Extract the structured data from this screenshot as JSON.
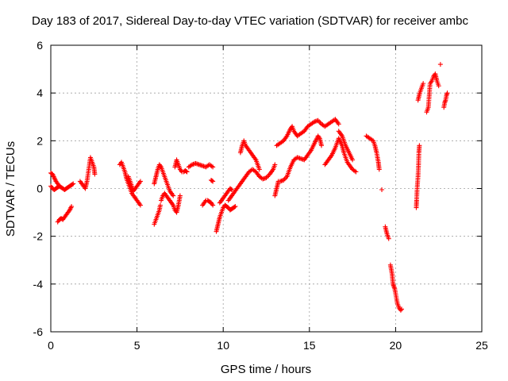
{
  "chart_data": {
    "type": "scatter",
    "title": "Day 183 of 2017, Sidereal Day-to-day VTEC variation (SDTVAR) for receiver ambc",
    "xlabel": "GPS time / hours",
    "ylabel": "SDTVAR / TECUs",
    "xlim": [
      0,
      25
    ],
    "ylim": [
      -6,
      6
    ],
    "x_ticks": [
      0,
      5,
      10,
      15,
      20,
      25
    ],
    "y_ticks": [
      -6,
      -4,
      -2,
      0,
      2,
      4,
      6
    ],
    "x_tick_labels": [
      "0",
      "5",
      "10",
      "15",
      "20",
      "25"
    ],
    "y_tick_labels": [
      "-6",
      "-4",
      "-2",
      "0",
      "2",
      "4",
      "6"
    ],
    "grid": true,
    "marker": "+",
    "marker_color": "#ff0000",
    "series": [
      {
        "name": "SDTVAR",
        "segments": [
          [
            [
              0.0,
              0.65
            ],
            [
              0.1,
              0.6
            ],
            [
              0.2,
              0.45
            ],
            [
              0.3,
              0.3
            ],
            [
              0.4,
              0.2
            ],
            [
              0.5,
              0.1
            ],
            [
              0.6,
              0.05
            ],
            [
              0.7,
              0.0
            ],
            [
              0.8,
              -0.05
            ],
            [
              0.9,
              0.0
            ],
            [
              1.0,
              0.05
            ],
            [
              1.1,
              0.1
            ],
            [
              1.2,
              0.15
            ],
            [
              1.3,
              0.2
            ]
          ],
          [
            [
              0.0,
              0.1
            ],
            [
              0.1,
              0.0
            ],
            [
              0.2,
              -0.05
            ],
            [
              0.3,
              0.0
            ],
            [
              0.4,
              0.05
            ],
            [
              0.5,
              0.1
            ]
          ],
          [
            [
              0.4,
              -1.4
            ],
            [
              0.5,
              -1.3
            ],
            [
              0.6,
              -1.25
            ],
            [
              0.7,
              -1.3
            ],
            [
              0.8,
              -1.2
            ],
            [
              0.9,
              -1.1
            ],
            [
              1.0,
              -1.0
            ],
            [
              1.1,
              -0.9
            ],
            [
              1.2,
              -0.75
            ]
          ],
          [
            [
              1.7,
              0.3
            ],
            [
              1.8,
              0.2
            ],
            [
              1.9,
              0.1
            ],
            [
              2.0,
              0.0
            ],
            [
              2.1,
              0.3
            ],
            [
              2.2,
              0.8
            ],
            [
              2.3,
              1.3
            ],
            [
              2.4,
              1.1
            ],
            [
              2.5,
              0.9
            ],
            [
              2.55,
              0.6
            ]
          ],
          [
            [
              4.0,
              1.0
            ],
            [
              4.1,
              1.1
            ],
            [
              4.2,
              0.9
            ],
            [
              4.3,
              0.7
            ],
            [
              4.4,
              0.4
            ],
            [
              4.5,
              0.2
            ],
            [
              4.6,
              0.0
            ],
            [
              4.7,
              -0.2
            ],
            [
              4.8,
              -0.3
            ],
            [
              4.9,
              -0.4
            ],
            [
              5.0,
              -0.5
            ],
            [
              5.1,
              -0.6
            ],
            [
              5.2,
              -0.7
            ]
          ],
          [
            [
              4.5,
              0.5
            ],
            [
              4.6,
              0.3
            ],
            [
              4.7,
              0.1
            ],
            [
              4.8,
              -0.1
            ],
            [
              4.9,
              0.0
            ],
            [
              5.0,
              0.1
            ],
            [
              5.1,
              0.2
            ],
            [
              5.2,
              0.3
            ]
          ],
          [
            [
              6.0,
              -1.5
            ],
            [
              6.1,
              -1.3
            ],
            [
              6.2,
              -1.1
            ],
            [
              6.3,
              -0.9
            ],
            [
              6.35,
              -0.7
            ]
          ],
          [
            [
              6.0,
              0.2
            ],
            [
              6.1,
              0.5
            ],
            [
              6.2,
              0.8
            ],
            [
              6.3,
              1.0
            ],
            [
              6.4,
              0.9
            ],
            [
              6.5,
              0.7
            ],
            [
              6.6,
              0.5
            ],
            [
              6.7,
              0.3
            ],
            [
              6.8,
              0.1
            ],
            [
              6.9,
              -0.1
            ],
            [
              7.0,
              -0.2
            ],
            [
              7.1,
              -0.3
            ]
          ],
          [
            [
              6.4,
              -0.5
            ],
            [
              6.5,
              -0.3
            ],
            [
              6.6,
              -0.2
            ],
            [
              6.7,
              -0.3
            ],
            [
              6.8,
              -0.4
            ],
            [
              6.9,
              -0.5
            ],
            [
              7.0,
              -0.6
            ],
            [
              7.1,
              -0.7
            ],
            [
              7.2,
              -0.9
            ],
            [
              7.3,
              -1.0
            ],
            [
              7.4,
              -0.7
            ],
            [
              7.5,
              -0.3
            ]
          ],
          [
            [
              7.2,
              0.9
            ],
            [
              7.3,
              1.2
            ],
            [
              7.4,
              1.0
            ],
            [
              7.5,
              0.8
            ],
            [
              7.6,
              0.7
            ],
            [
              7.7,
              0.7
            ],
            [
              7.8,
              0.75
            ],
            [
              7.9,
              0.7
            ]
          ],
          [
            [
              8.0,
              0.9
            ],
            [
              8.2,
              1.0
            ],
            [
              8.4,
              1.05
            ],
            [
              8.6,
              1.0
            ],
            [
              8.8,
              0.95
            ],
            [
              9.0,
              0.9
            ],
            [
              9.2,
              1.0
            ],
            [
              9.4,
              0.9
            ]
          ],
          [
            [
              8.8,
              -0.7
            ],
            [
              8.9,
              -0.6
            ],
            [
              9.0,
              -0.5
            ],
            [
              9.1,
              -0.5
            ],
            [
              9.2,
              -0.55
            ],
            [
              9.3,
              -0.6
            ],
            [
              9.4,
              -0.7
            ]
          ],
          [
            [
              9.3,
              0.35
            ],
            [
              9.4,
              0.3
            ]
          ],
          [
            [
              9.6,
              -1.8
            ],
            [
              9.7,
              -1.5
            ],
            [
              9.8,
              -1.2
            ],
            [
              9.9,
              -1.0
            ],
            [
              10.0,
              -0.8
            ],
            [
              10.1,
              -0.7
            ],
            [
              10.2,
              -0.75
            ],
            [
              10.3,
              -0.8
            ],
            [
              10.4,
              -0.9
            ],
            [
              10.5,
              -0.85
            ],
            [
              10.6,
              -0.8
            ],
            [
              10.7,
              -0.75
            ]
          ],
          [
            [
              9.8,
              -0.6
            ],
            [
              9.9,
              -0.5
            ],
            [
              10.0,
              -0.4
            ],
            [
              10.1,
              -0.3
            ],
            [
              10.2,
              -0.2
            ],
            [
              10.3,
              -0.1
            ],
            [
              10.4,
              0.0
            ],
            [
              10.5,
              -0.05
            ]
          ],
          [
            [
              10.3,
              -0.5
            ],
            [
              10.5,
              -0.3
            ],
            [
              10.7,
              -0.1
            ],
            [
              10.9,
              0.1
            ],
            [
              11.1,
              0.3
            ],
            [
              11.3,
              0.5
            ],
            [
              11.5,
              0.7
            ],
            [
              11.7,
              0.8
            ],
            [
              11.9,
              0.7
            ],
            [
              12.1,
              0.5
            ],
            [
              12.3,
              0.4
            ],
            [
              12.5,
              0.45
            ],
            [
              12.7,
              0.6
            ],
            [
              12.9,
              0.8
            ],
            [
              13.0,
              1.0
            ]
          ],
          [
            [
              11.0,
              1.5
            ],
            [
              11.1,
              1.8
            ],
            [
              11.2,
              2.0
            ],
            [
              11.3,
              1.8
            ],
            [
              11.5,
              1.6
            ],
            [
              11.7,
              1.4
            ],
            [
              11.9,
              1.2
            ],
            [
              12.0,
              1.0
            ],
            [
              12.1,
              0.8
            ]
          ],
          [
            [
              13.0,
              -0.3
            ],
            [
              13.1,
              0.0
            ],
            [
              13.2,
              0.3
            ],
            [
              13.3,
              0.3
            ],
            [
              13.5,
              0.35
            ],
            [
              13.7,
              0.5
            ],
            [
              13.9,
              0.9
            ],
            [
              14.1,
              1.2
            ],
            [
              14.3,
              1.3
            ],
            [
              14.5,
              1.25
            ],
            [
              14.7,
              1.2
            ],
            [
              14.9,
              1.4
            ],
            [
              15.1,
              1.6
            ],
            [
              15.3,
              1.9
            ],
            [
              15.5,
              2.2
            ],
            [
              15.6,
              2.1
            ],
            [
              15.7,
              1.8
            ]
          ],
          [
            [
              13.1,
              1.8
            ],
            [
              13.3,
              1.9
            ],
            [
              13.5,
              2.0
            ],
            [
              13.7,
              2.2
            ],
            [
              13.9,
              2.5
            ],
            [
              14.0,
              2.6
            ],
            [
              14.1,
              2.4
            ],
            [
              14.3,
              2.2
            ],
            [
              14.5,
              2.3
            ],
            [
              14.7,
              2.4
            ],
            [
              14.9,
              2.6
            ],
            [
              15.1,
              2.7
            ],
            [
              15.3,
              2.8
            ],
            [
              15.5,
              2.85
            ],
            [
              15.7,
              2.7
            ],
            [
              15.9,
              2.6
            ],
            [
              16.1,
              2.7
            ],
            [
              16.3,
              2.8
            ],
            [
              16.5,
              2.9
            ],
            [
              16.7,
              2.7
            ]
          ],
          [
            [
              15.9,
              1.0
            ],
            [
              16.1,
              1.2
            ],
            [
              16.3,
              1.4
            ],
            [
              16.5,
              1.7
            ],
            [
              16.7,
              2.1
            ],
            [
              16.9,
              1.8
            ],
            [
              17.0,
              1.5
            ],
            [
              17.1,
              1.3
            ],
            [
              17.2,
              1.1
            ],
            [
              17.3,
              1.0
            ],
            [
              17.5,
              0.8
            ],
            [
              17.7,
              0.7
            ]
          ],
          [
            [
              16.7,
              2.4
            ],
            [
              16.9,
              2.2
            ],
            [
              17.1,
              1.8
            ],
            [
              17.3,
              1.5
            ],
            [
              17.5,
              1.2
            ]
          ],
          [
            [
              18.3,
              2.2
            ],
            [
              18.5,
              2.1
            ],
            [
              18.7,
              2.0
            ],
            [
              18.8,
              1.8
            ],
            [
              18.9,
              1.5
            ],
            [
              19.0,
              1.1
            ],
            [
              19.05,
              0.8
            ]
          ],
          [
            [
              19.2,
              -0.05
            ]
          ],
          [
            [
              19.4,
              -1.6
            ],
            [
              19.5,
              -1.9
            ],
            [
              19.6,
              -2.1
            ]
          ],
          [
            [
              19.7,
              -3.2
            ],
            [
              19.8,
              -3.6
            ],
            [
              19.85,
              -4.0
            ],
            [
              19.9,
              -4.1
            ],
            [
              19.95,
              -4.2
            ],
            [
              20.0,
              -4.4
            ],
            [
              20.1,
              -4.8
            ],
            [
              20.2,
              -5.0
            ],
            [
              20.3,
              -5.1
            ],
            [
              20.35,
              -5.05
            ]
          ],
          [
            [
              21.2,
              -0.8
            ],
            [
              21.22,
              -0.5
            ],
            [
              21.25,
              0.0
            ],
            [
              21.3,
              0.5
            ],
            [
              21.33,
              1.0
            ],
            [
              21.35,
              1.5
            ],
            [
              21.38,
              1.8
            ]
          ],
          [
            [
              21.3,
              3.7
            ],
            [
              21.4,
              4.0
            ],
            [
              21.5,
              4.2
            ],
            [
              21.6,
              4.4
            ]
          ],
          [
            [
              21.8,
              3.2
            ],
            [
              21.9,
              3.4
            ],
            [
              22.0,
              4.4
            ],
            [
              22.1,
              4.5
            ],
            [
              22.2,
              4.7
            ],
            [
              22.3,
              4.8
            ],
            [
              22.4,
              4.5
            ],
            [
              22.5,
              4.3
            ]
          ],
          [
            [
              22.6,
              5.2
            ]
          ],
          [
            [
              22.8,
              3.4
            ],
            [
              22.85,
              3.6
            ],
            [
              22.9,
              3.7
            ],
            [
              22.95,
              3.9
            ],
            [
              23.0,
              4.0
            ]
          ]
        ]
      }
    ]
  }
}
